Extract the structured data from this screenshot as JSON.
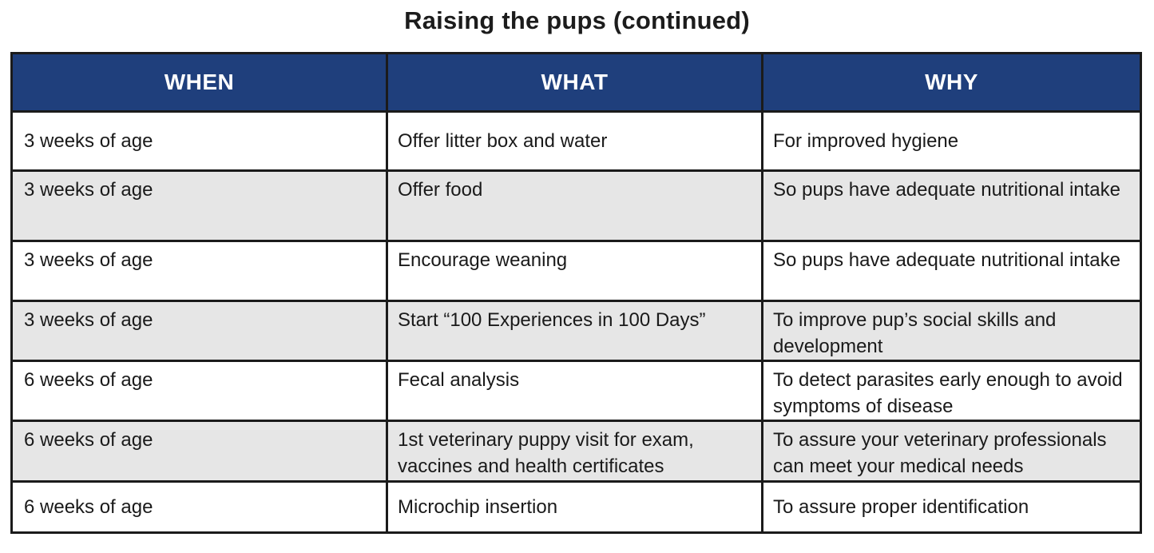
{
  "title": "Raising the pups (continued)",
  "columns": [
    "WHEN",
    "WHAT",
    "WHY"
  ],
  "colors": {
    "header_background": "#1f3f7c",
    "header_text": "#ffffff",
    "alternate_row_background": "#e6e6e6",
    "row_background": "#ffffff",
    "border": "#1b1b1b"
  },
  "rows": [
    {
      "when": "3 weeks of age",
      "what": "Offer litter box and water",
      "why": "For improved hygiene"
    },
    {
      "when": "3 weeks of age",
      "what": "Offer food",
      "why": "So pups have adequate nutritional intake"
    },
    {
      "when": "3 weeks of age",
      "what": "Encourage weaning",
      "why": "So pups have adequate nutritional intake"
    },
    {
      "when": "3 weeks of age",
      "what": "Start “100 Experiences in 100 Days”",
      "why": "To improve pup’s social skills and development"
    },
    {
      "when": "6 weeks of age",
      "what": "Fecal analysis",
      "why": "To detect parasites early enough to avoid symptoms of disease"
    },
    {
      "when": "6 weeks of age",
      "what": "1st veterinary puppy visit for exam, vaccines and health certificates",
      "why": "To assure your veterinary professionals can meet your medical needs"
    },
    {
      "when": "6 weeks of age",
      "what": "Microchip insertion",
      "why": "To assure proper identification"
    }
  ]
}
